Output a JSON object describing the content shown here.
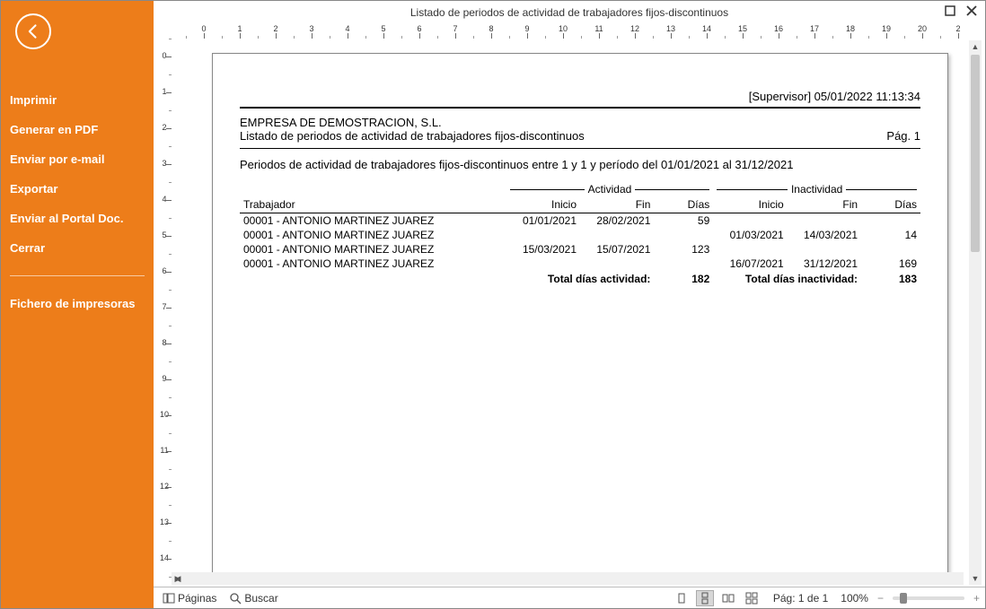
{
  "colors": {
    "sidebar_bg": "#ed7d1a",
    "sidebar_fg": "#ffffff",
    "page_bg": "#ffffff",
    "text": "#000000",
    "rule": "#000000"
  },
  "window": {
    "title": "Listado de periodos de actividad de trabajadores fijos-discontinuos"
  },
  "sidebar": {
    "items": [
      "Imprimir",
      "Generar en PDF",
      "Enviar por e-mail",
      "Exportar",
      "Enviar al Portal Doc.",
      "Cerrar"
    ],
    "post_divider_items": [
      "Fichero de impresoras"
    ]
  },
  "ruler_max_cm": 20,
  "ruler_v_max_cm": 15,
  "report": {
    "supervisor_stamp": "[Supervisor] 05/01/2022 11:13:34",
    "company": "EMPRESA DE DEMOSTRACION, S.L.",
    "subtitle": "Listado de periodos de actividad de trabajadores fijos-discontinuos",
    "page_label": "Pág. 1",
    "filter_line": "Periodos de actividad de trabajadores fijos-discontinuos entre 1 y 1 y período del 01/01/2021 al 31/12/2021",
    "section_activity": "Actividad",
    "section_inactivity": "Inactividad",
    "columns": {
      "worker": "Trabajador",
      "inicio": "Inicio",
      "fin": "Fin",
      "dias": "Días"
    },
    "rows": [
      {
        "worker": "00001 - ANTONIO MARTINEZ JUAREZ",
        "a_ini": "01/01/2021",
        "a_fin": "28/02/2021",
        "a_dias": "59",
        "i_ini": "",
        "i_fin": "",
        "i_dias": ""
      },
      {
        "worker": "00001 - ANTONIO MARTINEZ JUAREZ",
        "a_ini": "",
        "a_fin": "",
        "a_dias": "",
        "i_ini": "01/03/2021",
        "i_fin": "14/03/2021",
        "i_dias": "14"
      },
      {
        "worker": "00001 - ANTONIO MARTINEZ JUAREZ",
        "a_ini": "15/03/2021",
        "a_fin": "15/07/2021",
        "a_dias": "123",
        "i_ini": "",
        "i_fin": "",
        "i_dias": ""
      },
      {
        "worker": "00001 - ANTONIO MARTINEZ JUAREZ",
        "a_ini": "",
        "a_fin": "",
        "a_dias": "",
        "i_ini": "16/07/2021",
        "i_fin": "31/12/2021",
        "i_dias": "169"
      }
    ],
    "totals": {
      "activity_label": "Total días actividad:",
      "activity_value": "182",
      "inactivity_label": "Total días inactividad:",
      "inactivity_value": "183"
    }
  },
  "statusbar": {
    "pages_label": "Páginas",
    "search_label": "Buscar",
    "page_indicator": "Pág: 1 de 1",
    "zoom_label": "100%",
    "zoom_knob_pct": 10
  }
}
